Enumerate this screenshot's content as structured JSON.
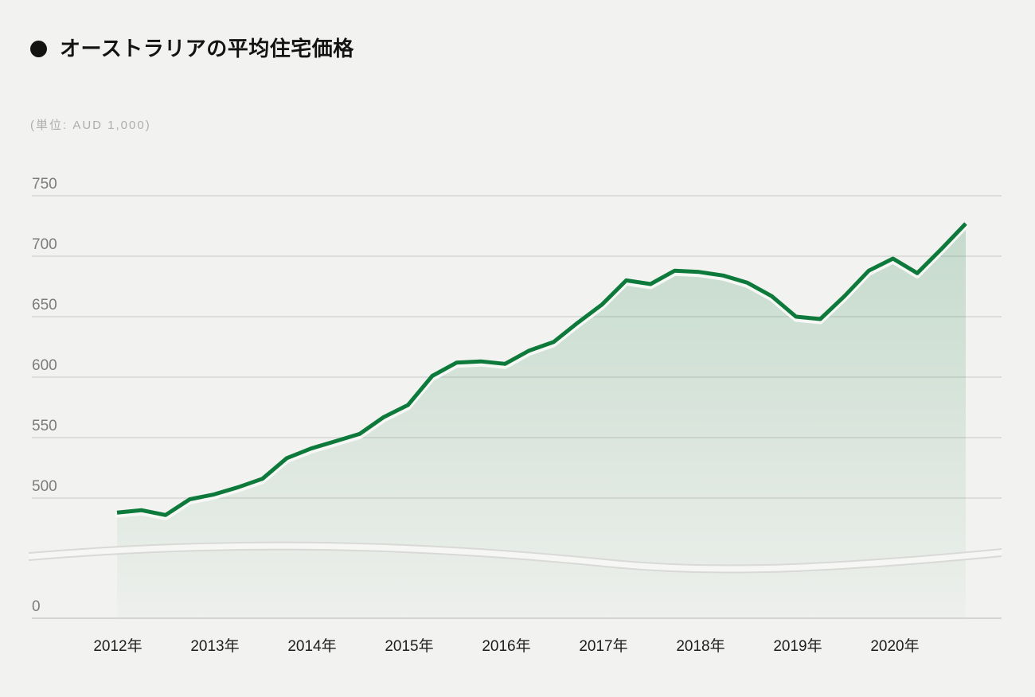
{
  "page": {
    "background_color": "#f2f2f0"
  },
  "header": {
    "bullet_icon": "filled-circle",
    "title": "オーストラリアの平均住宅価格",
    "unit_note": "(単位: AUD 1,000)"
  },
  "chart_data": {
    "type": "area",
    "title": "オーストラリアの平均住宅価格",
    "unit_label": "(単位: AUD 1,000)",
    "unit": "AUD 1,000",
    "frequency": "quarterly",
    "x_start": "2012-Q1",
    "x_end": "2020-Q4",
    "x_tick_labels": [
      "2012年",
      "2013年",
      "2014年",
      "2015年",
      "2016年",
      "2017年",
      "2018年",
      "2019年",
      "2020年"
    ],
    "y_tick_labels": [
      "750",
      "700",
      "650",
      "600",
      "550",
      "500",
      "0"
    ],
    "y_axis_break_between": [
      500,
      0
    ],
    "grid": true,
    "legend": false,
    "line_color": "#0d7a3b",
    "fill_color": "#0d7a3b",
    "fill_top_opacity": 0.2,
    "fill_bottom_opacity": 0.02,
    "gridline_color": "#dedddb",
    "values": [
      488,
      490,
      486,
      499,
      503,
      509,
      516,
      533,
      541,
      547,
      553,
      567,
      577,
      601,
      612,
      613,
      611,
      622,
      629,
      645,
      660,
      680,
      677,
      688,
      687,
      684,
      678,
      667,
      650,
      648,
      667,
      688,
      698,
      686,
      706,
      727
    ]
  }
}
